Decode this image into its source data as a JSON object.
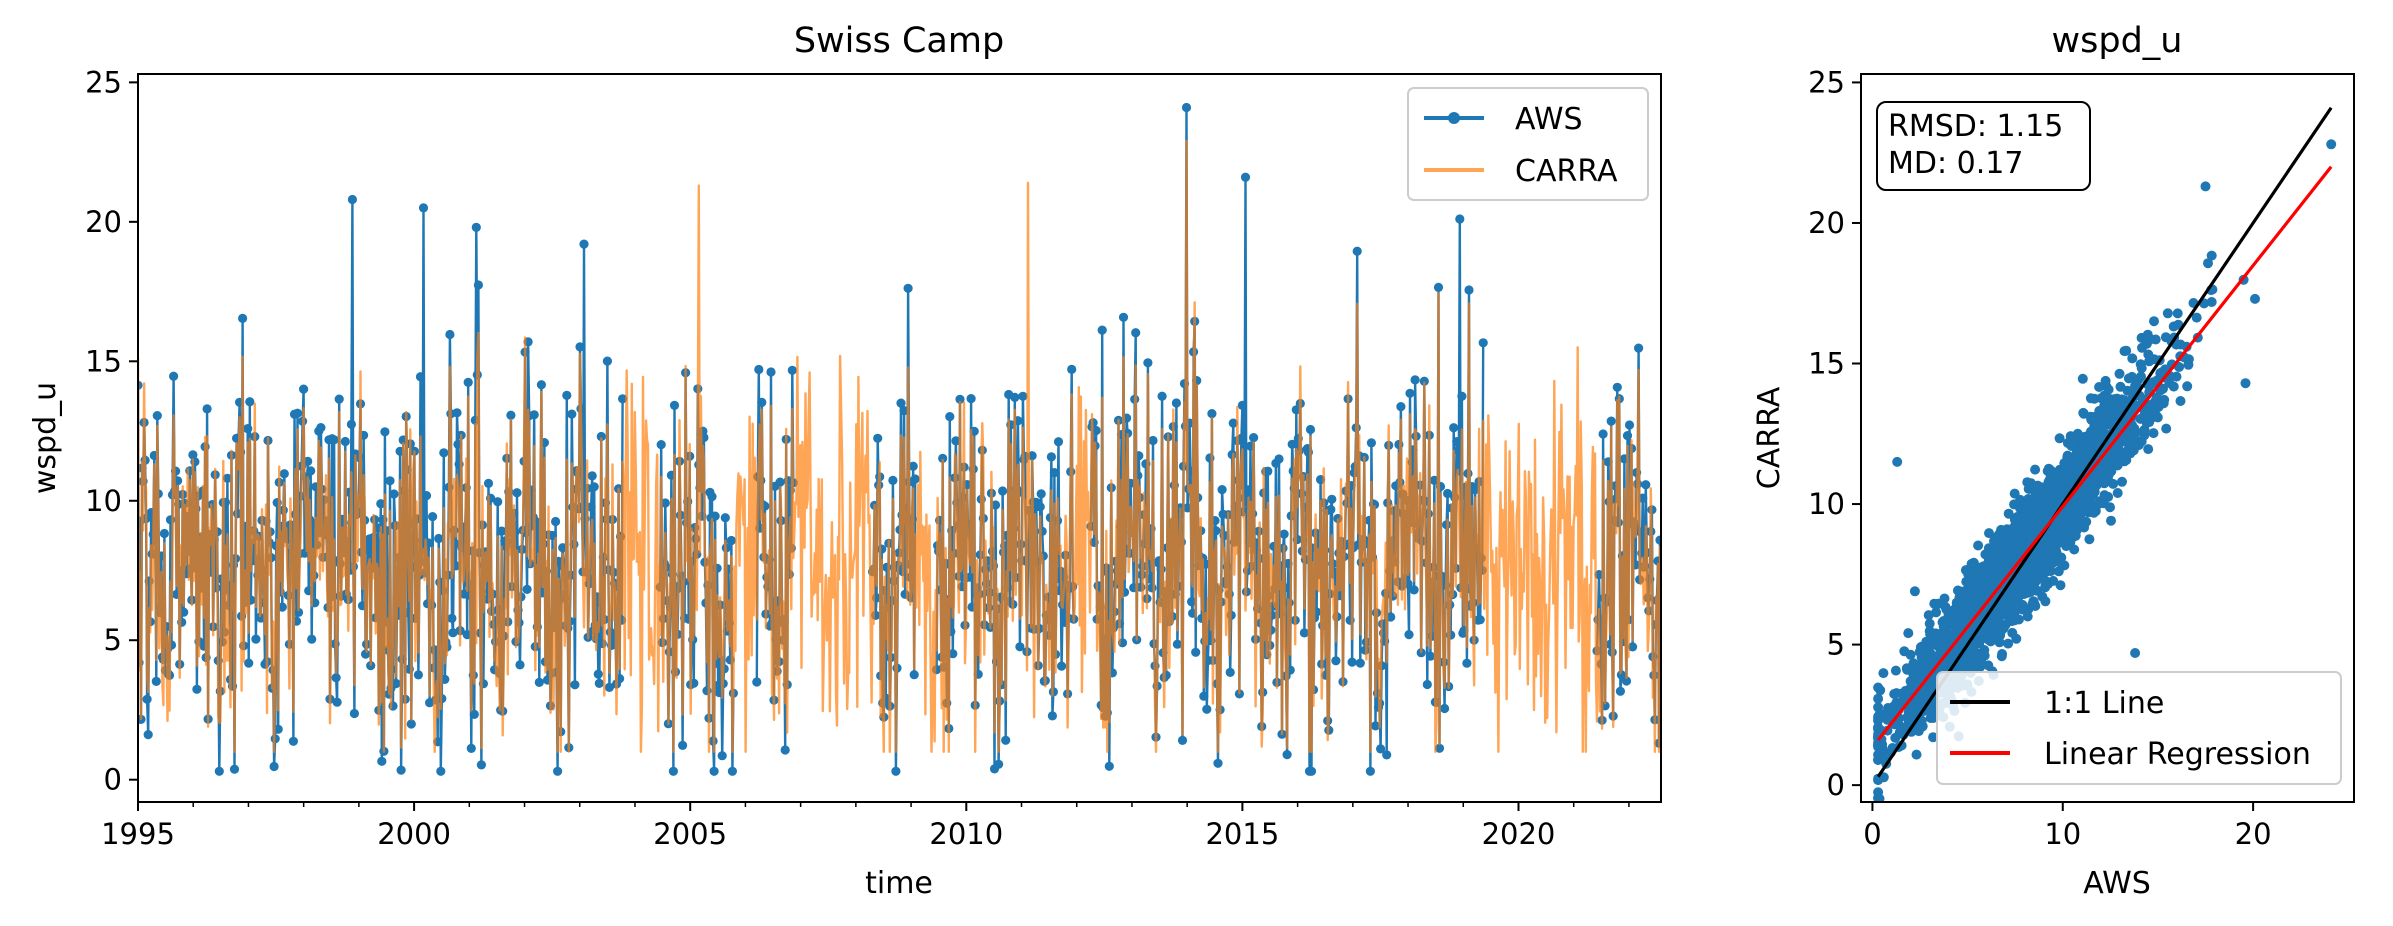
{
  "chart_data": [
    {
      "type": "line",
      "title": "Swiss Camp",
      "xlabel": "time",
      "ylabel": "wspd_u",
      "xlim": [
        "1995-01-01",
        "2022-08-01"
      ],
      "ylim": [
        -0.8,
        25.3
      ],
      "x_ticks": [
        {
          "date": "1995-01-01",
          "label": "1995"
        },
        {
          "date": "2000-01-01",
          "label": "2000"
        },
        {
          "date": "2005-01-01",
          "label": "2005"
        },
        {
          "date": "2010-01-01",
          "label": "2010"
        },
        {
          "date": "2015-01-01",
          "label": "2015"
        },
        {
          "date": "2020-01-01",
          "label": "2020"
        }
      ],
      "y_ticks": [
        0,
        5,
        10,
        15,
        20,
        25
      ],
      "legend": {
        "position": "top-right",
        "entries": [
          "AWS",
          "CARRA"
        ]
      },
      "grid": false,
      "series": [
        {
          "name": "AWS",
          "color": "#1f77b4",
          "marker": "circle",
          "coverage": [
            [
              "1995-01-01",
              "2003-10-15"
            ],
            [
              "2004-06-15",
              "2005-10-15"
            ],
            [
              "2006-03-15",
              "2006-11-15"
            ],
            [
              "2008-04-15",
              "2009-02-01"
            ],
            [
              "2009-06-15",
              "2011-12-15"
            ],
            [
              "2012-04-01",
              "2019-05-15"
            ],
            [
              "2021-06-01",
              "2022-08-01"
            ]
          ],
          "range_approx": [
            0.3,
            24.1
          ],
          "peaks": [
            {
              "x": "1998-11-20",
              "y": 20.8
            },
            {
              "x": "2000-03-01",
              "y": 20.5
            },
            {
              "x": "2001-02-15",
              "y": 19.8
            },
            {
              "x": "2003-02-01",
              "y": 19.2
            },
            {
              "x": "2013-12-25",
              "y": 24.1
            },
            {
              "x": "2015-01-20",
              "y": 21.6
            },
            {
              "x": "2018-12-10",
              "y": 20.1
            }
          ]
        },
        {
          "name": "CARRA",
          "color": "#ff7f0e",
          "alpha": 0.7,
          "coverage": [
            [
              "1995-01-01",
              "2022-08-01"
            ]
          ],
          "range_approx": [
            1.0,
            23.0
          ],
          "peaks": [
            {
              "x": "2005-03-01",
              "y": 21.3
            },
            {
              "x": "2011-02-15",
              "y": 21.4
            },
            {
              "x": "2013-12-25",
              "y": 22.9
            }
          ]
        }
      ]
    },
    {
      "type": "scatter",
      "title": "wspd_u",
      "xlabel": "AWS",
      "ylabel": "CARRA",
      "xlim": [
        -0.6,
        25.3
      ],
      "ylim": [
        -0.6,
        25.3
      ],
      "x_ticks": [
        0,
        10,
        20
      ],
      "y_ticks": [
        0,
        5,
        10,
        15,
        20,
        25
      ],
      "point_color": "#1f77b4",
      "cloud_center_line": {
        "slope": 0.88,
        "intercept": 1.2
      },
      "outliers": [
        {
          "x": 1.3,
          "y": 11.5
        },
        {
          "x": 13.8,
          "y": 4.7
        },
        {
          "x": 19.6,
          "y": 14.3
        },
        {
          "x": 24.1,
          "y": 22.8
        },
        {
          "x": 20.1,
          "y": 17.3
        },
        {
          "x": 17.5,
          "y": 21.3
        }
      ],
      "lines": [
        {
          "name": "1:1 Line",
          "color": "#000000",
          "x": [
            0.3,
            24.1
          ],
          "y": [
            0.3,
            24.1
          ]
        },
        {
          "name": "Linear Regression",
          "color": "#ff0000",
          "x": [
            0.3,
            24.1
          ],
          "y": [
            1.6,
            22.0
          ]
        }
      ],
      "legend": {
        "position": "bottom-right",
        "entries": [
          "1:1 Line",
          "Linear Regression"
        ]
      },
      "stats": {
        "rmsd": "RMSD: 1.15",
        "md": "MD: 0.17"
      },
      "grid": false
    }
  ]
}
